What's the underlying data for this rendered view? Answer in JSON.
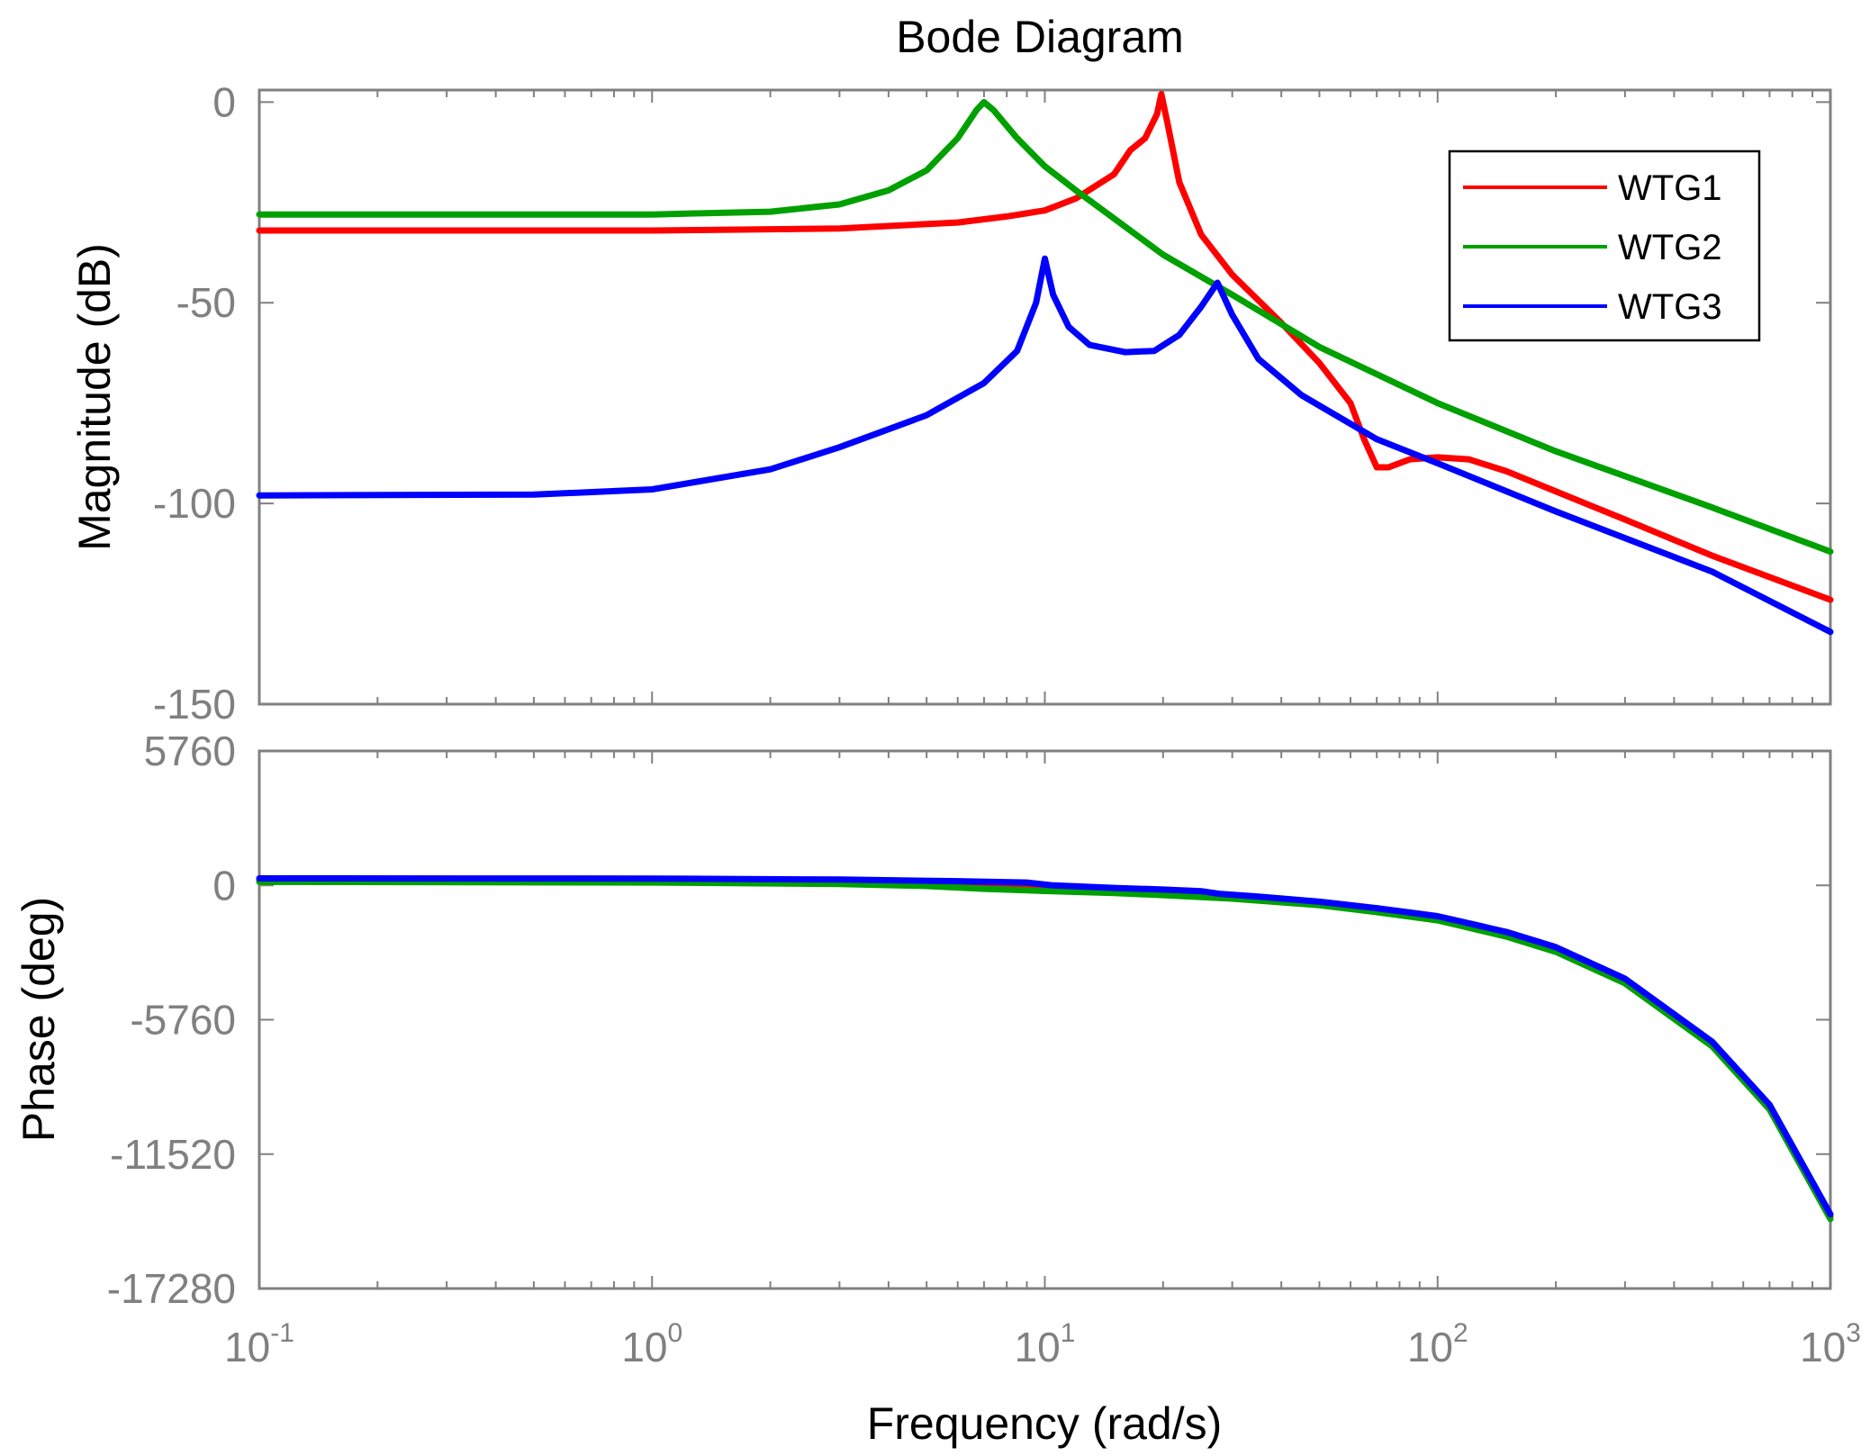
{
  "chart_data": {
    "type": "line",
    "title": "Bode Diagram",
    "xlabel": "Frequency  (rad/s)",
    "xscale": "log",
    "xlim": [
      0.1,
      1000
    ],
    "x_ticks": [
      {
        "value": 0.1,
        "base": "10",
        "exp": "-1"
      },
      {
        "value": 1,
        "base": "10",
        "exp": "0"
      },
      {
        "value": 10,
        "base": "10",
        "exp": "1"
      },
      {
        "value": 100,
        "base": "10",
        "exp": "2"
      },
      {
        "value": 1000,
        "base": "10",
        "exp": "3"
      }
    ],
    "legend": {
      "placement": "top-right",
      "entries": [
        {
          "label": "WTG1",
          "color": "#ff0000"
        },
        {
          "label": "WTG2",
          "color": "#00a000"
        },
        {
          "label": "WTG3",
          "color": "#0000ff"
        }
      ]
    },
    "magnitude": {
      "ylabel": "Magnitude (dB)",
      "ylim": [
        -150,
        3
      ],
      "y_ticks": [
        {
          "value": 0,
          "label": "0"
        },
        {
          "value": -50,
          "label": "-50"
        },
        {
          "value": -100,
          "label": "-100"
        },
        {
          "value": -150,
          "label": "-150"
        }
      ],
      "series": [
        {
          "name": "WTG1",
          "color": "#ff0000",
          "points": [
            [
              0.1,
              -32
            ],
            [
              1,
              -32
            ],
            [
              3,
              -31.5
            ],
            [
              6,
              -30
            ],
            [
              8,
              -28.5
            ],
            [
              10,
              -27
            ],
            [
              12,
              -24
            ],
            [
              15,
              -18
            ],
            [
              16.5,
              -12
            ],
            [
              18,
              -9
            ],
            [
              19.3,
              -3
            ],
            [
              19.8,
              2
            ],
            [
              20.5,
              -5
            ],
            [
              22,
              -20
            ],
            [
              25,
              -33
            ],
            [
              30,
              -43
            ],
            [
              40,
              -55
            ],
            [
              50,
              -65
            ],
            [
              60,
              -75
            ],
            [
              65,
              -84
            ],
            [
              70,
              -91
            ],
            [
              75,
              -91
            ],
            [
              85,
              -89
            ],
            [
              100,
              -88.5
            ],
            [
              120,
              -89
            ],
            [
              150,
              -92
            ],
            [
              200,
              -97
            ],
            [
              300,
              -104
            ],
            [
              500,
              -113
            ],
            [
              1000,
              -124
            ]
          ]
        },
        {
          "name": "WTG2",
          "color": "#00a000",
          "points": [
            [
              0.1,
              -28
            ],
            [
              1,
              -28
            ],
            [
              2,
              -27.3
            ],
            [
              3,
              -25.5
            ],
            [
              4,
              -22
            ],
            [
              5,
              -17
            ],
            [
              6,
              -9
            ],
            [
              6.7,
              -2
            ],
            [
              7,
              0
            ],
            [
              7.4,
              -2
            ],
            [
              8.5,
              -9
            ],
            [
              10,
              -16
            ],
            [
              12,
              -22
            ],
            [
              15,
              -29
            ],
            [
              20,
              -38
            ],
            [
              30,
              -48
            ],
            [
              50,
              -61
            ],
            [
              100,
              -75
            ],
            [
              200,
              -87
            ],
            [
              500,
              -101
            ],
            [
              1000,
              -112
            ]
          ]
        },
        {
          "name": "WTG3",
          "color": "#0000ff",
          "points": [
            [
              0.1,
              -98
            ],
            [
              0.5,
              -97.8
            ],
            [
              1,
              -96.5
            ],
            [
              2,
              -91.5
            ],
            [
              3,
              -86
            ],
            [
              5,
              -78
            ],
            [
              7,
              -70
            ],
            [
              8.5,
              -62
            ],
            [
              9.5,
              -50
            ],
            [
              10,
              -39
            ],
            [
              10.5,
              -48
            ],
            [
              11.5,
              -56
            ],
            [
              13,
              -60.5
            ],
            [
              16,
              -62.3
            ],
            [
              19,
              -62
            ],
            [
              22,
              -58
            ],
            [
              25,
              -51
            ],
            [
              27.5,
              -45
            ],
            [
              30,
              -53
            ],
            [
              35,
              -64
            ],
            [
              45,
              -73
            ],
            [
              70,
              -84
            ],
            [
              100,
              -90
            ],
            [
              200,
              -102
            ],
            [
              500,
              -117
            ],
            [
              1000,
              -132
            ]
          ]
        }
      ]
    },
    "phase": {
      "ylabel": "Phase (deg)",
      "ylim": [
        -17280,
        5760
      ],
      "y_ticks": [
        {
          "value": 5760,
          "label": "5760"
        },
        {
          "value": 0,
          "label": "0"
        },
        {
          "value": -5760,
          "label": "-5760"
        },
        {
          "value": -11520,
          "label": "-11520"
        },
        {
          "value": -17280,
          "label": "-17280"
        }
      ],
      "series": [
        {
          "name": "WTG1",
          "color": "#ff0000",
          "points": [
            [
              0.1,
              200
            ],
            [
              1,
              190
            ],
            [
              3,
              160
            ],
            [
              6,
              120
            ],
            [
              8,
              40
            ],
            [
              10,
              -50
            ],
            [
              15,
              -220
            ],
            [
              20,
              -330
            ],
            [
              30,
              -500
            ],
            [
              50,
              -780
            ],
            [
              70,
              -1080
            ],
            [
              100,
              -1400
            ],
            [
              150,
              -2100
            ],
            [
              200,
              -2750
            ],
            [
              300,
              -4100
            ],
            [
              500,
              -6800
            ],
            [
              700,
              -9500
            ],
            [
              1000,
              -14200
            ]
          ]
        },
        {
          "name": "WTG2",
          "color": "#00a000",
          "points": [
            [
              0.1,
              150
            ],
            [
              1,
              120
            ],
            [
              3,
              60
            ],
            [
              5,
              -30
            ],
            [
              7,
              -150
            ],
            [
              10,
              -240
            ],
            [
              15,
              -330
            ],
            [
              20,
              -420
            ],
            [
              30,
              -570
            ],
            [
              50,
              -850
            ],
            [
              70,
              -1150
            ],
            [
              100,
              -1500
            ],
            [
              150,
              -2200
            ],
            [
              200,
              -2850
            ],
            [
              300,
              -4200
            ],
            [
              500,
              -6900
            ],
            [
              700,
              -9600
            ],
            [
              1000,
              -14300
            ]
          ]
        },
        {
          "name": "WTG3",
          "color": "#0000ff",
          "points": [
            [
              0.1,
              300
            ],
            [
              1,
              290
            ],
            [
              3,
              250
            ],
            [
              6,
              180
            ],
            [
              9,
              120
            ],
            [
              10.5,
              0
            ],
            [
              15,
              -110
            ],
            [
              20,
              -180
            ],
            [
              25,
              -250
            ],
            [
              28,
              -370
            ],
            [
              35,
              -480
            ],
            [
              50,
              -700
            ],
            [
              70,
              -980
            ],
            [
              100,
              -1320
            ],
            [
              150,
              -2000
            ],
            [
              200,
              -2650
            ],
            [
              300,
              -4000
            ],
            [
              500,
              -6700
            ],
            [
              700,
              -9400
            ],
            [
              1000,
              -14100
            ]
          ]
        }
      ]
    }
  }
}
